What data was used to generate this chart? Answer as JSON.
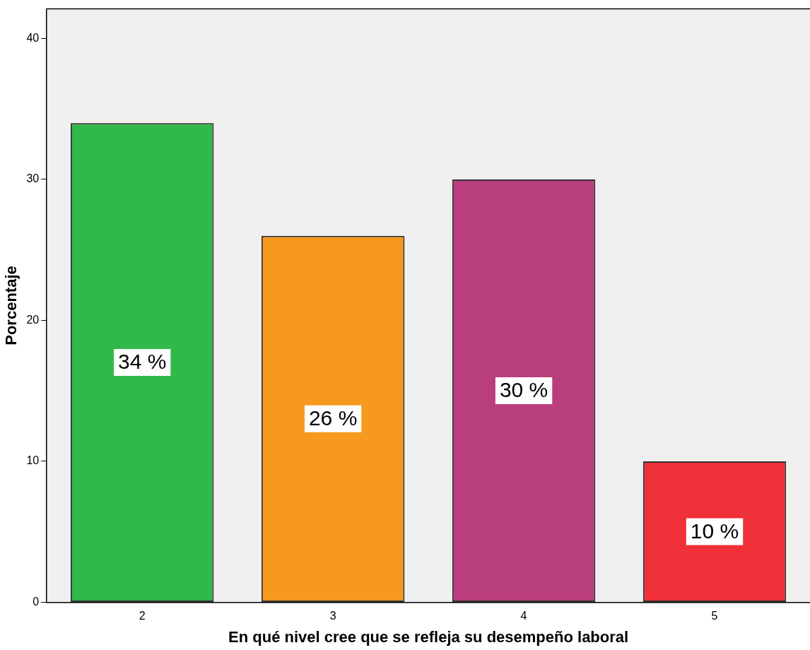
{
  "chart_data": {
    "type": "bar",
    "xlabel": "En qué nivel cree que se refleja su desempeño laboral",
    "ylabel": "Porcentaje",
    "categories": [
      "2",
      "3",
      "4",
      "5"
    ],
    "values": [
      34,
      26,
      30,
      10
    ],
    "colors": [
      "#31b84a",
      "#f7991f",
      "#b93e7d",
      "#ef3038"
    ],
    "value_labels": [
      "34 %",
      "26 %",
      "30 %",
      "10 %"
    ],
    "ylim": [
      0,
      42.1
    ],
    "yticks": [
      0,
      10,
      20,
      30,
      40
    ],
    "grid": false,
    "legend": false
  }
}
